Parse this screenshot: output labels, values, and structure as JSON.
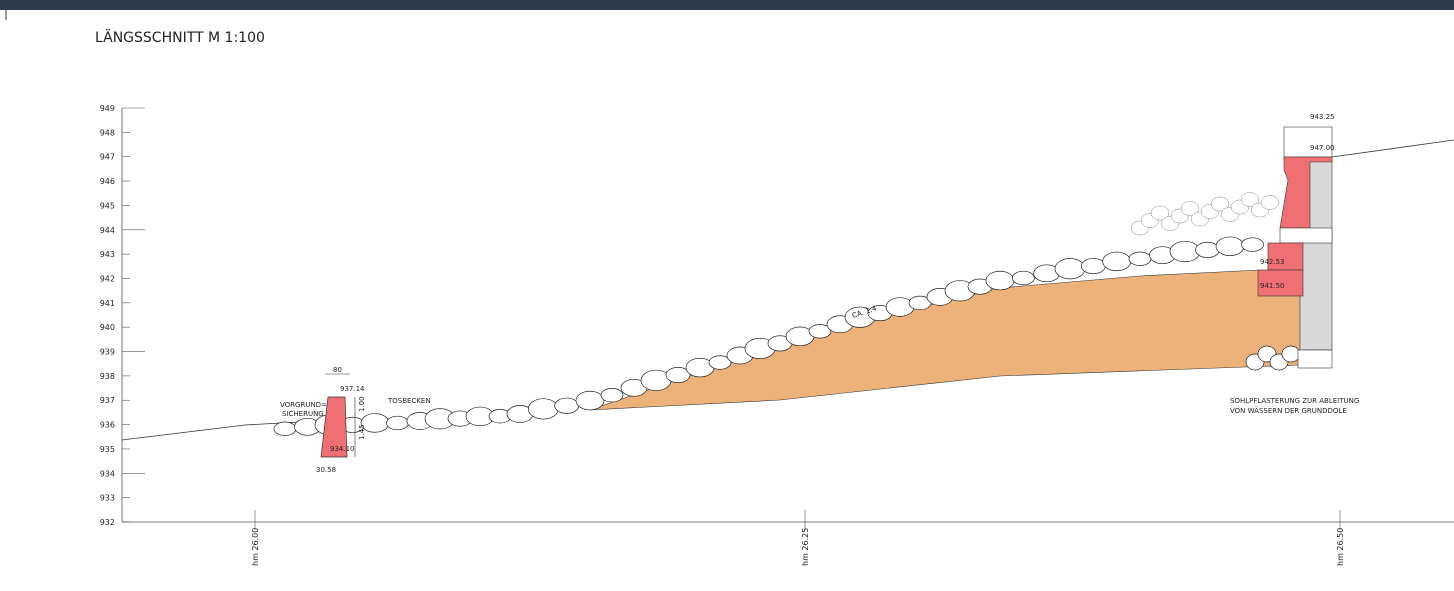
{
  "header": {
    "title": "LÄNGSSCHNITT M 1:100"
  },
  "axis": {
    "elevations": [
      949,
      948,
      947,
      946,
      945,
      944,
      943,
      942,
      941,
      940,
      939,
      938,
      937,
      936,
      935,
      934,
      933,
      932
    ],
    "stations": [
      "hm 26.00",
      "hm 26.25",
      "hm 26.50"
    ]
  },
  "annotations": {
    "vorgrund_1": "VORGRUND=",
    "vorgrund_2": "SICHERUNG",
    "tosbecken": "TOSBECKEN",
    "slope": "CA. 1:4",
    "sohl_1": "SOHLPFLASTERUNG ZUR ABLEITUNG",
    "sohl_2": "VON WÄSSERN DER GRUNDDOLE",
    "dim_width": "80",
    "dim_bottom": "30.58",
    "dim_depth": "1.45",
    "dim_top": "1.00",
    "level_top_left": "937.14",
    "level_bottom_left": "934.10",
    "level_crest": "943.25",
    "level_wall": "947.00",
    "level_step_1": "942.53",
    "level_step_2": "941.50"
  }
}
